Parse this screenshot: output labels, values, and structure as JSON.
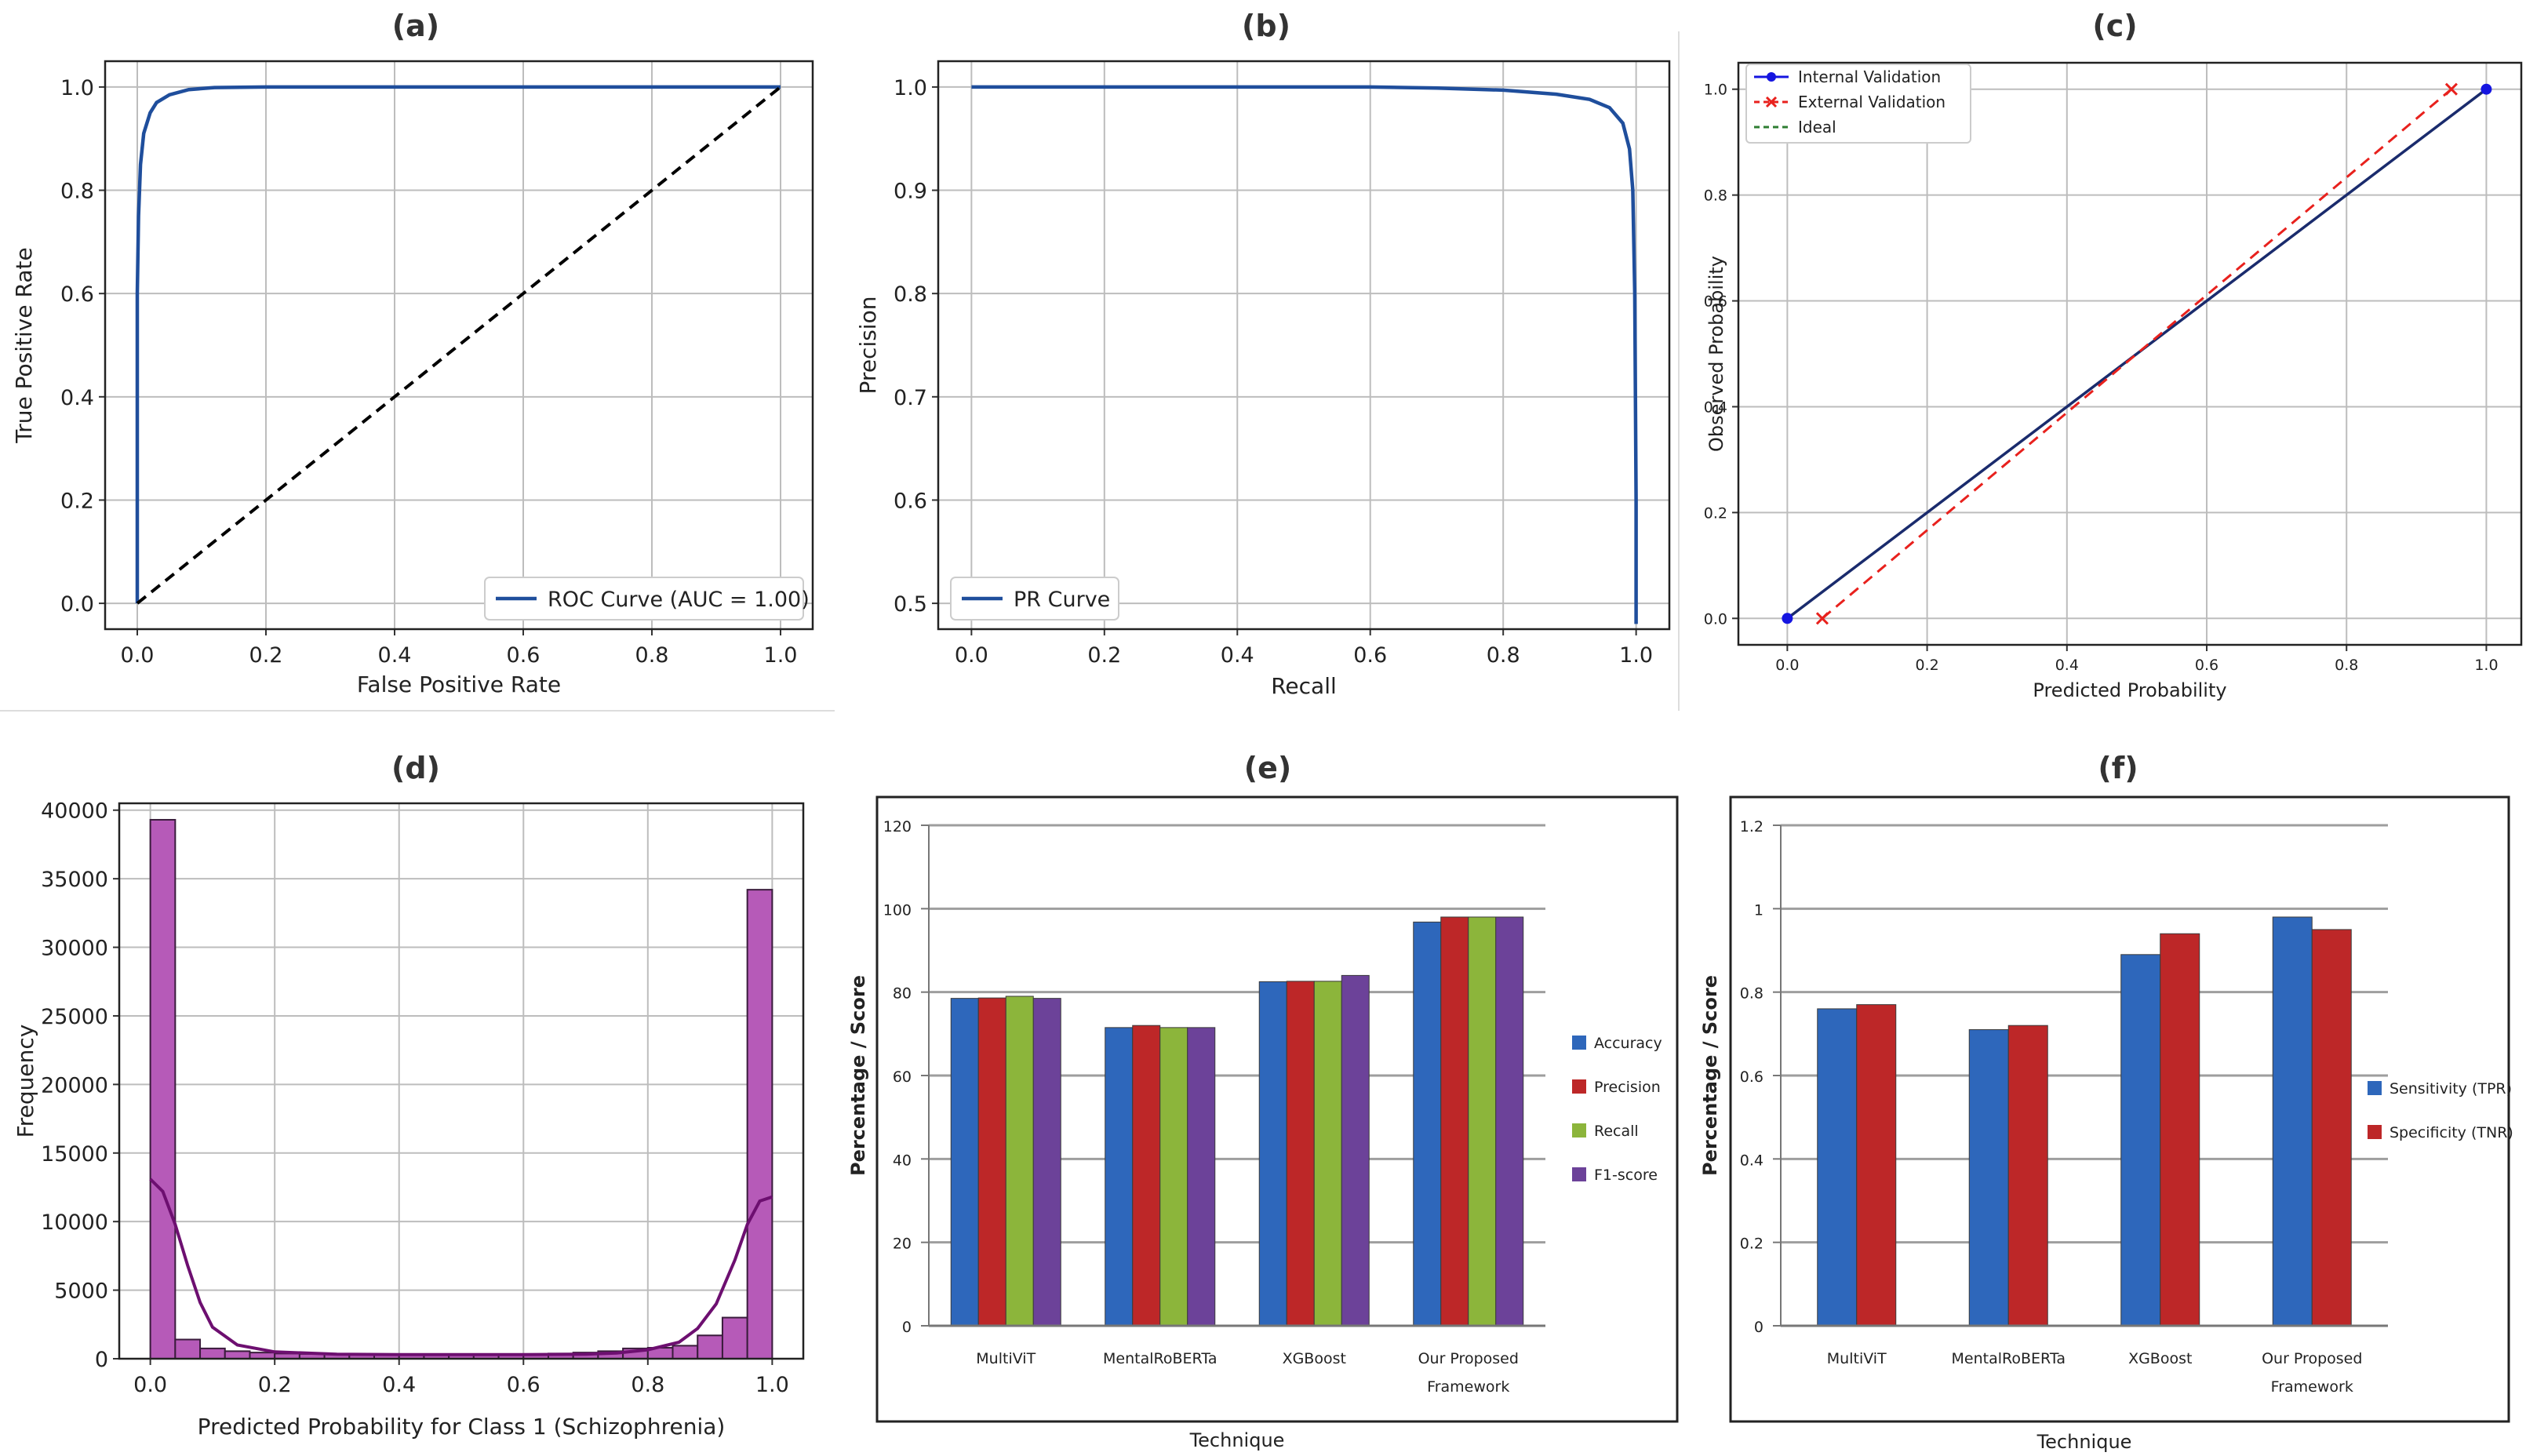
{
  "chart_data": [
    {
      "panel": "(a)",
      "type": "line",
      "xlabel": "False Positive Rate",
      "ylabel": "True Positive Rate",
      "xlim": [
        -0.05,
        1.05
      ],
      "ylim": [
        -0.05,
        1.05
      ],
      "xticks": [
        "0.0",
        "0.2",
        "0.4",
        "0.6",
        "0.8",
        "1.0"
      ],
      "yticks": [
        "0.0",
        "0.2",
        "0.4",
        "0.6",
        "0.8",
        "1.0"
      ],
      "grid": true,
      "legend_position": "lower-right",
      "series": [
        {
          "name": "ROC Curve (AUC = 1.00)",
          "color": "#1f4e9c",
          "style": "solid",
          "x": [
            0,
            0.0,
            0.002,
            0.005,
            0.01,
            0.02,
            0.03,
            0.05,
            0.08,
            0.12,
            0.2,
            0.4,
            0.6,
            0.8,
            1.0
          ],
          "y": [
            0,
            0.6,
            0.75,
            0.85,
            0.91,
            0.95,
            0.97,
            0.985,
            0.995,
            0.999,
            1.0,
            1.0,
            1.0,
            1.0,
            1.0
          ]
        },
        {
          "name": "",
          "color": "#000000",
          "style": "dashed",
          "x": [
            0,
            1
          ],
          "y": [
            0,
            1
          ]
        }
      ]
    },
    {
      "panel": "(b)",
      "type": "line",
      "xlabel": "Recall",
      "ylabel": "Precision",
      "xlim": [
        -0.05,
        1.05
      ],
      "ylim": [
        0.475,
        1.025
      ],
      "xticks": [
        "0.0",
        "0.2",
        "0.4",
        "0.6",
        "0.8",
        "1.0"
      ],
      "yticks": [
        "0.5",
        "0.6",
        "0.7",
        "0.8",
        "0.9",
        "1.0"
      ],
      "grid": true,
      "legend_position": "lower-left",
      "series": [
        {
          "name": "PR Curve",
          "color": "#1f4e9c",
          "style": "solid",
          "x": [
            0,
            0.2,
            0.4,
            0.6,
            0.7,
            0.8,
            0.88,
            0.93,
            0.96,
            0.98,
            0.99,
            0.995,
            0.998,
            1.0,
            1.0
          ],
          "y": [
            1.0,
            1.0,
            1.0,
            1.0,
            0.999,
            0.997,
            0.993,
            0.988,
            0.98,
            0.965,
            0.94,
            0.9,
            0.8,
            0.6,
            0.48
          ]
        }
      ]
    },
    {
      "panel": "(c)",
      "type": "line",
      "xlabel": "Predicted Probability",
      "ylabel": "Observed Probability",
      "xlim": [
        -0.07,
        1.05
      ],
      "ylim": [
        -0.05,
        1.05
      ],
      "xticks": [
        "0.0",
        "0.2",
        "0.4",
        "0.6",
        "0.8",
        "1.0"
      ],
      "yticks": [
        "0.0",
        "0.2",
        "0.4",
        "0.6",
        "0.8",
        "1.0"
      ],
      "grid": true,
      "legend_position": "upper-left",
      "series": [
        {
          "name": "Internal Validation",
          "color": "#1515e0",
          "style": "solid",
          "marker": "circle",
          "x": [
            0,
            1
          ],
          "y": [
            0,
            1
          ]
        },
        {
          "name": "External Validation",
          "color": "#e8211d",
          "style": "dashed",
          "marker": "x",
          "x": [
            0.05,
            0.95
          ],
          "y": [
            0,
            1
          ]
        },
        {
          "name": "Ideal",
          "color": "#2e7d32",
          "style": "dashed",
          "x": [
            0,
            1
          ],
          "y": [
            0,
            1
          ]
        }
      ]
    },
    {
      "panel": "(d)",
      "type": "histogram",
      "xlabel": "Predicted Probability for Class 1 (Schizophrenia)",
      "ylabel": "Frequency",
      "xlim": [
        -0.05,
        1.05
      ],
      "ylim": [
        0,
        40500
      ],
      "xticks": [
        "0.0",
        "0.2",
        "0.4",
        "0.6",
        "0.8",
        "1.0"
      ],
      "yticks": [
        "0",
        "5000",
        "10000",
        "15000",
        "20000",
        "25000",
        "30000",
        "35000",
        "40000"
      ],
      "grid": true,
      "bar_color": "#b65ab8",
      "kde_color": "#6d0f70",
      "bins_start": 0.0,
      "bin_width": 0.04,
      "counts": [
        39300,
        1400,
        750,
        550,
        450,
        380,
        350,
        320,
        300,
        300,
        300,
        300,
        300,
        300,
        320,
        340,
        380,
        450,
        550,
        750,
        800,
        950,
        1700,
        3000,
        34200
      ],
      "kde_x": [
        0.0,
        0.02,
        0.04,
        0.06,
        0.08,
        0.1,
        0.14,
        0.2,
        0.3,
        0.4,
        0.5,
        0.6,
        0.7,
        0.75,
        0.8,
        0.85,
        0.88,
        0.91,
        0.94,
        0.96,
        0.98,
        1.0
      ],
      "kde_y": [
        13100,
        12200,
        9800,
        6800,
        4100,
        2300,
        1000,
        500,
        330,
        300,
        300,
        300,
        330,
        420,
        650,
        1200,
        2200,
        4000,
        7200,
        9800,
        11500,
        11800
      ]
    },
    {
      "panel": "(e)",
      "type": "bar",
      "xlabel": "Technique",
      "ylabel": "Percentage / Score",
      "ylim": [
        0,
        120
      ],
      "yticks": [
        "0",
        "20",
        "40",
        "60",
        "80",
        "100",
        "120"
      ],
      "grid": true,
      "legend_position": "right",
      "categories": [
        [
          "MultiViT"
        ],
        [
          "MentalRoBERTa"
        ],
        [
          "XGBoost"
        ],
        [
          "Our Proposed",
          "Framework"
        ]
      ],
      "series": [
        {
          "name": "Accuracy",
          "color": "#2e67bb",
          "values": [
            78.5,
            71.5,
            82.5,
            96.8
          ]
        },
        {
          "name": "Precision",
          "color": "#bd2728",
          "values": [
            78.6,
            72.0,
            82.6,
            98.0
          ]
        },
        {
          "name": "Recall",
          "color": "#8cb53b",
          "values": [
            79.0,
            71.5,
            82.6,
            98.0
          ]
        },
        {
          "name": "F1-score",
          "color": "#6c4299",
          "values": [
            78.5,
            71.5,
            84.0,
            98.0
          ]
        }
      ]
    },
    {
      "panel": "(f)",
      "type": "bar",
      "xlabel": "Technique",
      "ylabel": "Percentage / Score",
      "ylim": [
        0,
        1.2
      ],
      "yticks": [
        "0",
        "0.2",
        "0.4",
        "0.6",
        "0.8",
        "1",
        "1.2"
      ],
      "grid": true,
      "legend_position": "right",
      "categories": [
        [
          "MultiViT"
        ],
        [
          "MentalRoBERTa"
        ],
        [
          "XGBoost"
        ],
        [
          "Our Proposed",
          "Framework"
        ]
      ],
      "series": [
        {
          "name": "Sensitivity (TPR)",
          "color": "#2e67bb",
          "values": [
            0.76,
            0.71,
            0.89,
            0.98
          ]
        },
        {
          "name": "Specificity (TNR)",
          "color": "#bd2728",
          "values": [
            0.77,
            0.72,
            0.94,
            0.95
          ]
        }
      ]
    }
  ]
}
